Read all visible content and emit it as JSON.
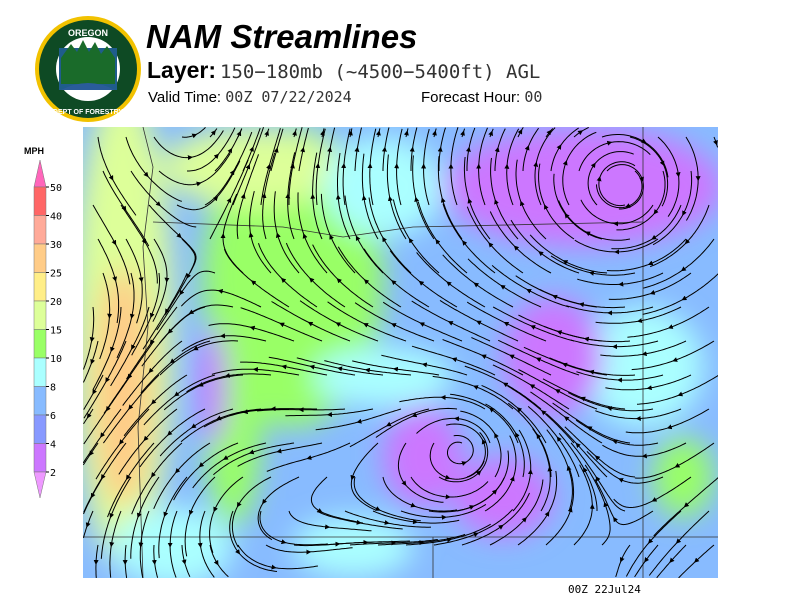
{
  "logo": {
    "top_text": "OREGON",
    "ring_text": "DEPARTMENT OF FORESTRY"
  },
  "header": {
    "title": "NAM Streamlines",
    "layer_label": "Layer:",
    "layer_value": "150−180mb (~4500−5400ft) AGL",
    "valid_label": "Valid Time:",
    "valid_value": "00Z 07/22/2024",
    "forecast_label": "Forecast Hour:",
    "forecast_value": "00"
  },
  "legend": {
    "unit": "MPH",
    "ticks": [
      "50",
      "40",
      "30",
      "25",
      "20",
      "15",
      "10",
      "8",
      "6",
      "4",
      "2"
    ],
    "colors": [
      "#ff66bb",
      "#ff6666",
      "#ffaa99",
      "#ffcc88",
      "#ffee88",
      "#ddff99",
      "#99ff66",
      "#aaffff",
      "#88bbff",
      "#8899ff",
      "#cc77ff",
      "#ee99ff"
    ]
  },
  "footer": {
    "timestamp": "00Z 22Jul24"
  }
}
